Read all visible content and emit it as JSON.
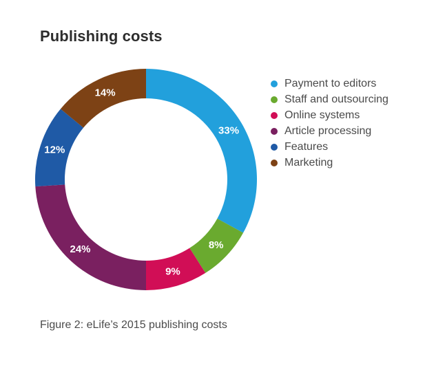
{
  "chart_data": {
    "type": "pie",
    "title": "Publishing costs",
    "caption": "Figure 2: eLife’s 2015 publishing costs",
    "legend_position": "right",
    "series": [
      {
        "name": "Payment to editors",
        "value": 33,
        "label": "33%",
        "color": "#22a0dc"
      },
      {
        "name": "Staff and outsourcing",
        "value": 8,
        "label": "8%",
        "color": "#6aaa2f"
      },
      {
        "name": "Online systems",
        "value": 9,
        "label": "9%",
        "color": "#d10e56"
      },
      {
        "name": "Article processing",
        "value": 24,
        "label": "24%",
        "color": "#7a2060"
      },
      {
        "name": "Features",
        "value": 12,
        "label": "12%",
        "color": "#1f5aa6"
      },
      {
        "name": "Marketing",
        "value": 14,
        "label": "14%",
        "color": "#7d4215"
      }
    ]
  }
}
